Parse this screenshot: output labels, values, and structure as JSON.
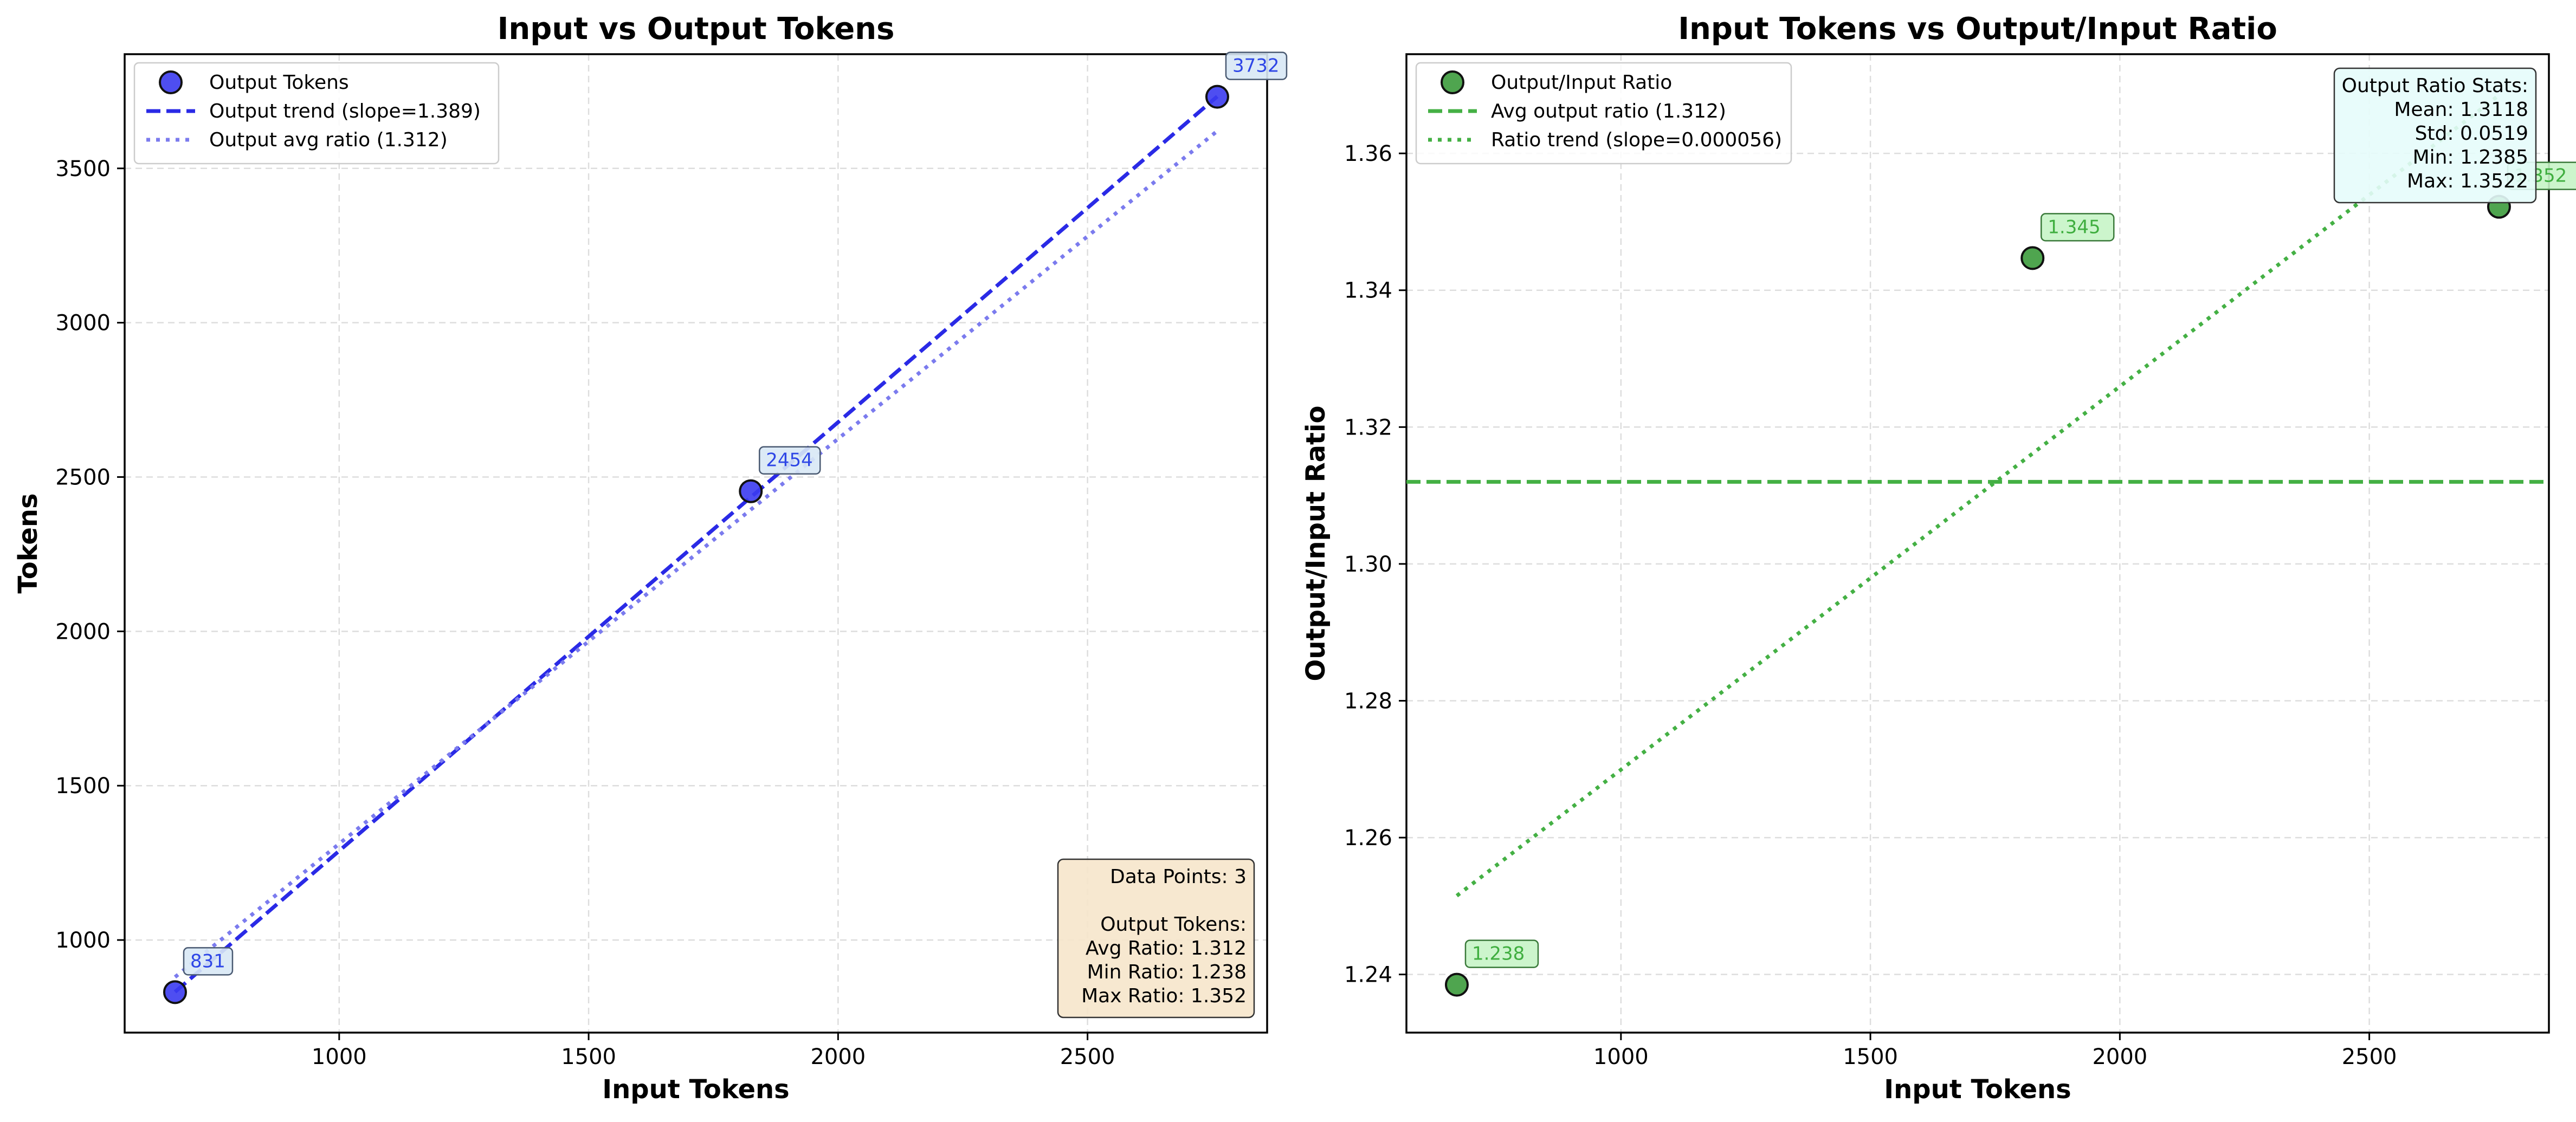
{
  "colors": {
    "left_points": "#3b3bf0",
    "left_trend": "#2a2ae6",
    "left_avg": "#7b7bee",
    "right_points": "#3c9b3c",
    "right_lines": "#44b044",
    "grid": "#dddddd",
    "left_stats_box": "#f6e6cb",
    "right_stats_box": "#e6fcfb",
    "left_label_box": "#d8e8f5",
    "right_label_box": "#c6f4c6"
  },
  "chart_data": [
    {
      "type": "scatter",
      "title": "Input vs Output Tokens",
      "xlabel": "Input Tokens",
      "ylabel": "Tokens",
      "xlim": [
        570,
        2860
      ],
      "ylim": [
        700,
        3870
      ],
      "xticks": [
        1000,
        1500,
        2000,
        2500
      ],
      "yticks": [
        1000,
        1500,
        2000,
        2500,
        3000,
        3500
      ],
      "grid": true,
      "legend_position": "upper-left",
      "series": [
        {
          "name": "Output Tokens",
          "kind": "scatter",
          "x": [
            671,
            1825,
            2760
          ],
          "y": [
            831,
            2454,
            3732
          ],
          "point_labels": [
            "831",
            "2454",
            "3732"
          ]
        },
        {
          "name": "Output trend (slope=1.389)",
          "kind": "dashed-line",
          "x": [
            671,
            2760
          ],
          "y": [
            832,
            3733
          ]
        },
        {
          "name": "Output avg ratio (1.312)",
          "kind": "dotted-line",
          "x": [
            671,
            2760
          ],
          "y": [
            880,
            3621
          ]
        }
      ],
      "stats_box": {
        "position": "lower-right",
        "lines": [
          "Data Points: 3",
          "",
          "Output Tokens:",
          "Avg Ratio: 1.312",
          "Min Ratio: 1.238",
          "Max Ratio: 1.352"
        ]
      }
    },
    {
      "type": "scatter",
      "title": "Input Tokens vs Output/Input Ratio",
      "xlabel": "Input Tokens",
      "ylabel": "Output/Input Ratio",
      "xlim": [
        570,
        2860
      ],
      "ylim": [
        1.2315,
        1.3745
      ],
      "xticks": [
        1000,
        1500,
        2000,
        2500
      ],
      "yticks": [
        1.24,
        1.26,
        1.28,
        1.3,
        1.32,
        1.34,
        1.36
      ],
      "ytick_labels": [
        "1.24",
        "1.26",
        "1.28",
        "1.30",
        "1.32",
        "1.34",
        "1.36"
      ],
      "grid": true,
      "legend_position": "upper-left",
      "series": [
        {
          "name": "Output/Input Ratio",
          "kind": "scatter",
          "x": [
            671,
            1825,
            2760
          ],
          "y": [
            1.2385,
            1.3447,
            1.3522
          ],
          "point_labels": [
            "1.238",
            "1.345",
            "1.352"
          ]
        },
        {
          "name": "Avg output ratio (1.312)",
          "kind": "hline",
          "y": 1.312
        },
        {
          "name": "Ratio trend (slope=0.000056)",
          "kind": "dotted-line",
          "x": [
            671,
            2760
          ],
          "y": [
            1.2515,
            1.3685
          ]
        }
      ],
      "stats_box": {
        "position": "upper-right",
        "lines": [
          "Output Ratio Stats:",
          "Mean: 1.3118",
          "Std: 0.0519",
          "Min: 1.2385",
          "Max: 1.3522"
        ]
      }
    }
  ]
}
